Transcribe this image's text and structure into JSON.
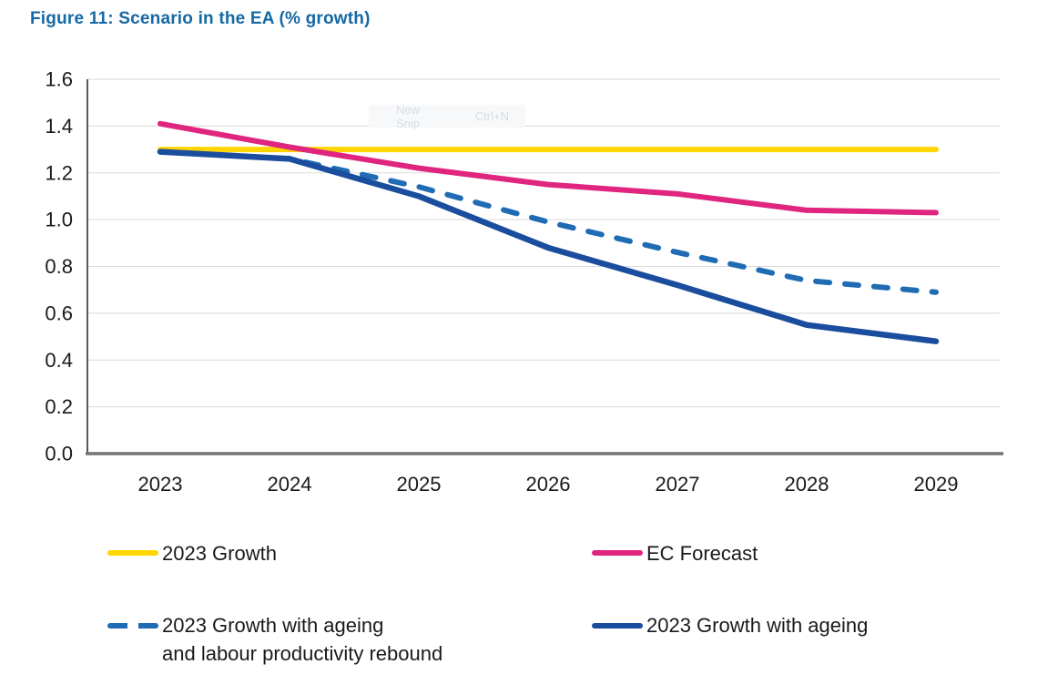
{
  "figure": {
    "title": "Figure 11: Scenario in the EA (% growth)"
  },
  "colors": {
    "title": "#1569A4",
    "grid": "#D9D9D9",
    "axis_y": "#595959",
    "axis_x": "#737373",
    "tick_text": "#1A1A1A",
    "legend_text": "#1A1A1A"
  },
  "snip_tooltip": {
    "label": "New Snip",
    "shortcut": "Ctrl+N"
  },
  "chart_data": {
    "type": "line",
    "title": "Figure 11: Scenario in the EA (% growth)",
    "x": [
      2023,
      2024,
      2025,
      2026,
      2027,
      2028,
      2029
    ],
    "x_tick_labels": [
      "2023",
      "2024",
      "2025",
      "2026",
      "2027",
      "2028",
      "2029"
    ],
    "y_tick_labels": [
      "0.0",
      "0.2",
      "0.4",
      "0.6",
      "0.8",
      "1.0",
      "1.2",
      "1.4",
      "1.6"
    ],
    "ylim": [
      0,
      1.6
    ],
    "ytick_step": 0.2,
    "grid": true,
    "legend_position": "bottom",
    "series": [
      {
        "name": "2023 Growth",
        "color": "#FFD500",
        "style": "solid",
        "width": 6,
        "values": [
          1.3,
          1.3,
          1.3,
          1.3,
          1.3,
          1.3,
          1.3
        ]
      },
      {
        "name": "EC Forecast",
        "color": "#E0257F",
        "style": "solid",
        "width": 6,
        "values": [
          1.41,
          1.31,
          1.22,
          1.15,
          1.11,
          1.04,
          1.03
        ]
      },
      {
        "name": "2023 Growth with ageing and labour productivity rebound",
        "color": "#1F6CB4",
        "style": "dashed",
        "width": 6,
        "values": [
          1.29,
          1.26,
          1.14,
          0.99,
          0.86,
          0.74,
          0.69
        ]
      },
      {
        "name": "2023 Growth with ageing",
        "color": "#1A4D9E",
        "style": "solid",
        "width": 6.5,
        "values": [
          1.29,
          1.26,
          1.1,
          0.88,
          0.72,
          0.55,
          0.48
        ]
      }
    ]
  },
  "legend": {
    "row1": [
      {
        "label": "2023 Growth",
        "color": "#FFD500",
        "style": "solid"
      },
      {
        "label": "EC Forecast",
        "color": "#E0257F",
        "style": "solid"
      }
    ],
    "row2": [
      {
        "label": "2023 Growth with ageing\nand labour productivity rebound",
        "color": "#1F6CB4",
        "style": "dashed"
      },
      {
        "label": "2023 Growth with ageing",
        "color": "#1A4D9E",
        "style": "solid"
      }
    ]
  }
}
